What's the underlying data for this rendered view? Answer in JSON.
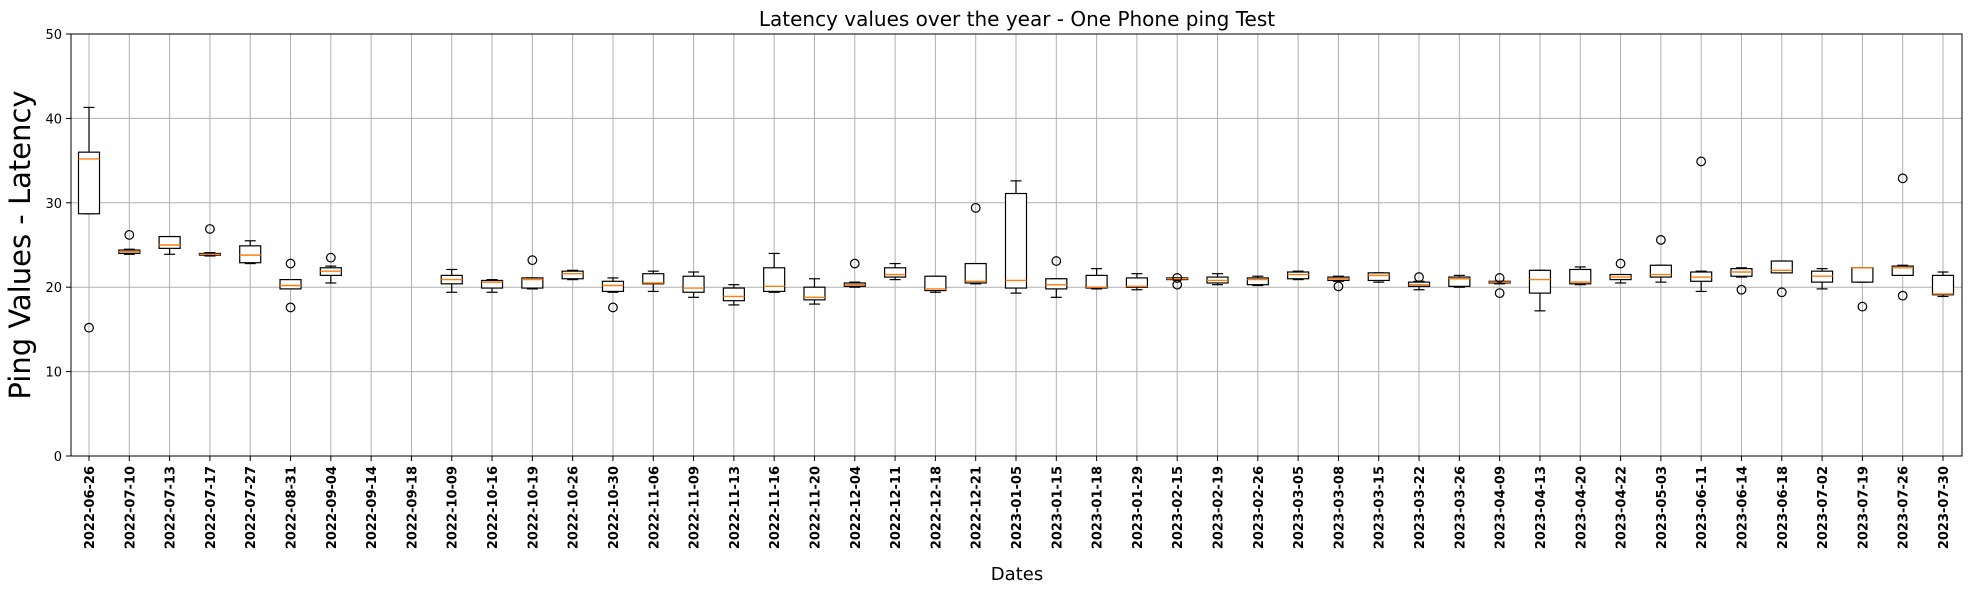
{
  "chart_data": {
    "type": "box",
    "title": "Latency values over the year - One Phone ping Test",
    "xlabel": "Dates",
    "ylabel": "Ping Values - Latency",
    "ylim": [
      0,
      50
    ],
    "yticks": [
      0,
      10,
      20,
      30,
      40,
      50
    ],
    "grid": true,
    "categories": [
      "2022-06-26",
      "2022-07-10",
      "2022-07-13",
      "2022-07-17",
      "2022-07-27",
      "2022-08-31",
      "2022-09-04",
      "2022-09-14",
      "2022-09-18",
      "2022-10-09",
      "2022-10-16",
      "2022-10-19",
      "2022-10-26",
      "2022-10-30",
      "2022-11-06",
      "2022-11-09",
      "2022-11-13",
      "2022-11-16",
      "2022-11-20",
      "2022-12-04",
      "2022-12-11",
      "2022-12-18",
      "2022-12-21",
      "2023-01-05",
      "2023-01-15",
      "2023-01-18",
      "2023-01-29",
      "2023-02-15",
      "2023-02-19",
      "2023-02-26",
      "2023-03-05",
      "2023-03-08",
      "2023-03-15",
      "2023-03-22",
      "2023-03-26",
      "2023-04-09",
      "2023-04-13",
      "2023-04-20",
      "2023-04-22",
      "2023-05-03",
      "2023-06-11",
      "2023-06-14",
      "2023-06-18",
      "2023-07-02",
      "2023-07-19",
      "2023-07-26",
      "2023-07-30"
    ],
    "boxes": [
      {
        "whislo": 28.7,
        "q1": 28.7,
        "med": 35.2,
        "q3": 36.0,
        "whishi": 41.3,
        "fliers": [
          15.2
        ]
      },
      {
        "whislo": 23.9,
        "q1": 24.0,
        "med": 24.2,
        "q3": 24.4,
        "whishi": 24.5,
        "fliers": [
          26.2
        ]
      },
      {
        "whislo": 23.9,
        "q1": 24.6,
        "med": 25.0,
        "q3": 26.0,
        "whishi": 26.0,
        "fliers": []
      },
      {
        "whislo": 23.7,
        "q1": 23.8,
        "med": 23.9,
        "q3": 24.0,
        "whishi": 24.1,
        "fliers": [
          26.9
        ]
      },
      {
        "whislo": 22.8,
        "q1": 22.9,
        "med": 23.8,
        "q3": 24.9,
        "whishi": 25.5,
        "fliers": []
      },
      {
        "whislo": 19.8,
        "q1": 19.8,
        "med": 20.2,
        "q3": 20.9,
        "whishi": 20.9,
        "fliers": [
          22.8,
          17.6
        ]
      },
      {
        "whislo": 20.5,
        "q1": 21.4,
        "med": 21.9,
        "q3": 22.3,
        "whishi": 22.5,
        "fliers": [
          23.5
        ]
      },
      null,
      null,
      {
        "whislo": 19.4,
        "q1": 20.4,
        "med": 20.9,
        "q3": 21.4,
        "whishi": 22.1,
        "fliers": []
      },
      {
        "whislo": 19.4,
        "q1": 19.9,
        "med": 20.6,
        "q3": 20.8,
        "whishi": 20.9,
        "fliers": []
      },
      {
        "whislo": 19.8,
        "q1": 19.9,
        "med": 20.9,
        "q3": 21.1,
        "whishi": 21.1,
        "fliers": [
          23.2
        ]
      },
      {
        "whislo": 20.9,
        "q1": 21.0,
        "med": 21.6,
        "q3": 21.9,
        "whishi": 22.0,
        "fliers": []
      },
      {
        "whislo": 19.4,
        "q1": 19.5,
        "med": 20.2,
        "q3": 20.7,
        "whishi": 21.1,
        "fliers": [
          17.6
        ]
      },
      {
        "whislo": 19.5,
        "q1": 20.4,
        "med": 20.5,
        "q3": 21.6,
        "whishi": 21.9,
        "fliers": []
      },
      {
        "whislo": 18.8,
        "q1": 19.4,
        "med": 19.9,
        "q3": 21.3,
        "whishi": 21.8,
        "fliers": []
      },
      {
        "whislo": 17.9,
        "q1": 18.4,
        "med": 18.9,
        "q3": 19.9,
        "whishi": 20.3,
        "fliers": []
      },
      {
        "whislo": 19.4,
        "q1": 19.5,
        "med": 20.1,
        "q3": 22.3,
        "whishi": 24.0,
        "fliers": []
      },
      {
        "whislo": 18.0,
        "q1": 18.5,
        "med": 18.8,
        "q3": 20.0,
        "whishi": 21.0,
        "fliers": []
      },
      {
        "whislo": 20.0,
        "q1": 20.1,
        "med": 20.3,
        "q3": 20.5,
        "whishi": 20.6,
        "fliers": [
          22.8
        ]
      },
      {
        "whislo": 20.9,
        "q1": 21.2,
        "med": 21.5,
        "q3": 22.3,
        "whishi": 22.8,
        "fliers": []
      },
      {
        "whislo": 19.4,
        "q1": 19.6,
        "med": 19.8,
        "q3": 21.3,
        "whishi": 21.3,
        "fliers": []
      },
      {
        "whislo": 20.4,
        "q1": 20.5,
        "med": 20.7,
        "q3": 22.8,
        "whishi": 22.8,
        "fliers": [
          29.4
        ]
      },
      {
        "whislo": 19.3,
        "q1": 19.9,
        "med": 20.8,
        "q3": 31.1,
        "whishi": 32.6,
        "fliers": []
      },
      {
        "whislo": 18.8,
        "q1": 19.8,
        "med": 20.3,
        "q3": 21.0,
        "whishi": 21.0,
        "fliers": [
          23.1
        ]
      },
      {
        "whislo": 19.8,
        "q1": 19.9,
        "med": 20.0,
        "q3": 21.4,
        "whishi": 22.2,
        "fliers": []
      },
      {
        "whislo": 19.7,
        "q1": 20.0,
        "med": 20.1,
        "q3": 21.1,
        "whishi": 21.6,
        "fliers": []
      },
      {
        "whislo": 20.9,
        "q1": 20.9,
        "med": 21.0,
        "q3": 21.1,
        "whishi": 21.1,
        "fliers": [
          21.1,
          20.3
        ]
      },
      {
        "whislo": 20.3,
        "q1": 20.5,
        "med": 20.8,
        "q3": 21.2,
        "whishi": 21.6,
        "fliers": []
      },
      {
        "whislo": 20.2,
        "q1": 20.3,
        "med": 20.9,
        "q3": 21.1,
        "whishi": 21.3,
        "fliers": []
      },
      {
        "whislo": 20.9,
        "q1": 21.0,
        "med": 21.5,
        "q3": 21.8,
        "whishi": 21.9,
        "fliers": []
      },
      {
        "whislo": 20.7,
        "q1": 20.8,
        "med": 21.0,
        "q3": 21.2,
        "whishi": 21.3,
        "fliers": [
          20.1
        ]
      },
      {
        "whislo": 20.6,
        "q1": 20.8,
        "med": 21.4,
        "q3": 21.7,
        "whishi": 21.7,
        "fliers": []
      },
      {
        "whislo": 19.7,
        "q1": 20.1,
        "med": 20.3,
        "q3": 20.6,
        "whishi": 20.7,
        "fliers": [
          21.2
        ]
      },
      {
        "whislo": 20.0,
        "q1": 20.1,
        "med": 21.0,
        "q3": 21.2,
        "whishi": 21.4,
        "fliers": []
      },
      {
        "whislo": 20.4,
        "q1": 20.5,
        "med": 20.6,
        "q3": 20.7,
        "whishi": 20.7,
        "fliers": [
          21.1,
          19.3
        ]
      },
      {
        "whislo": 17.2,
        "q1": 19.3,
        "med": 20.9,
        "q3": 22.0,
        "whishi": 22.0,
        "fliers": []
      },
      {
        "whislo": 20.3,
        "q1": 20.4,
        "med": 20.6,
        "q3": 22.1,
        "whishi": 22.4,
        "fliers": []
      },
      {
        "whislo": 20.5,
        "q1": 20.9,
        "med": 21.2,
        "q3": 21.5,
        "whishi": 21.5,
        "fliers": [
          22.8
        ]
      },
      {
        "whislo": 20.6,
        "q1": 21.2,
        "med": 21.5,
        "q3": 22.6,
        "whishi": 22.6,
        "fliers": [
          25.6
        ]
      },
      {
        "whislo": 19.5,
        "q1": 20.7,
        "med": 21.2,
        "q3": 21.8,
        "whishi": 21.9,
        "fliers": [
          34.9
        ]
      },
      {
        "whislo": 21.2,
        "q1": 21.3,
        "med": 21.8,
        "q3": 22.2,
        "whishi": 22.3,
        "fliers": [
          19.7
        ]
      },
      {
        "whislo": 21.7,
        "q1": 21.7,
        "med": 22.0,
        "q3": 23.1,
        "whishi": 23.1,
        "fliers": [
          19.4
        ]
      },
      {
        "whislo": 19.8,
        "q1": 20.6,
        "med": 21.3,
        "q3": 21.9,
        "whishi": 22.2,
        "fliers": []
      },
      {
        "whislo": 20.6,
        "q1": 20.6,
        "med": 22.3,
        "q3": 22.3,
        "whishi": 22.3,
        "fliers": [
          17.7
        ]
      },
      {
        "whislo": 21.4,
        "q1": 21.4,
        "med": 22.3,
        "q3": 22.5,
        "whishi": 22.6,
        "fliers": [
          32.9,
          19.0
        ]
      },
      {
        "whislo": 18.9,
        "q1": 19.1,
        "med": 19.2,
        "q3": 21.4,
        "whishi": 21.8,
        "fliers": []
      }
    ]
  }
}
